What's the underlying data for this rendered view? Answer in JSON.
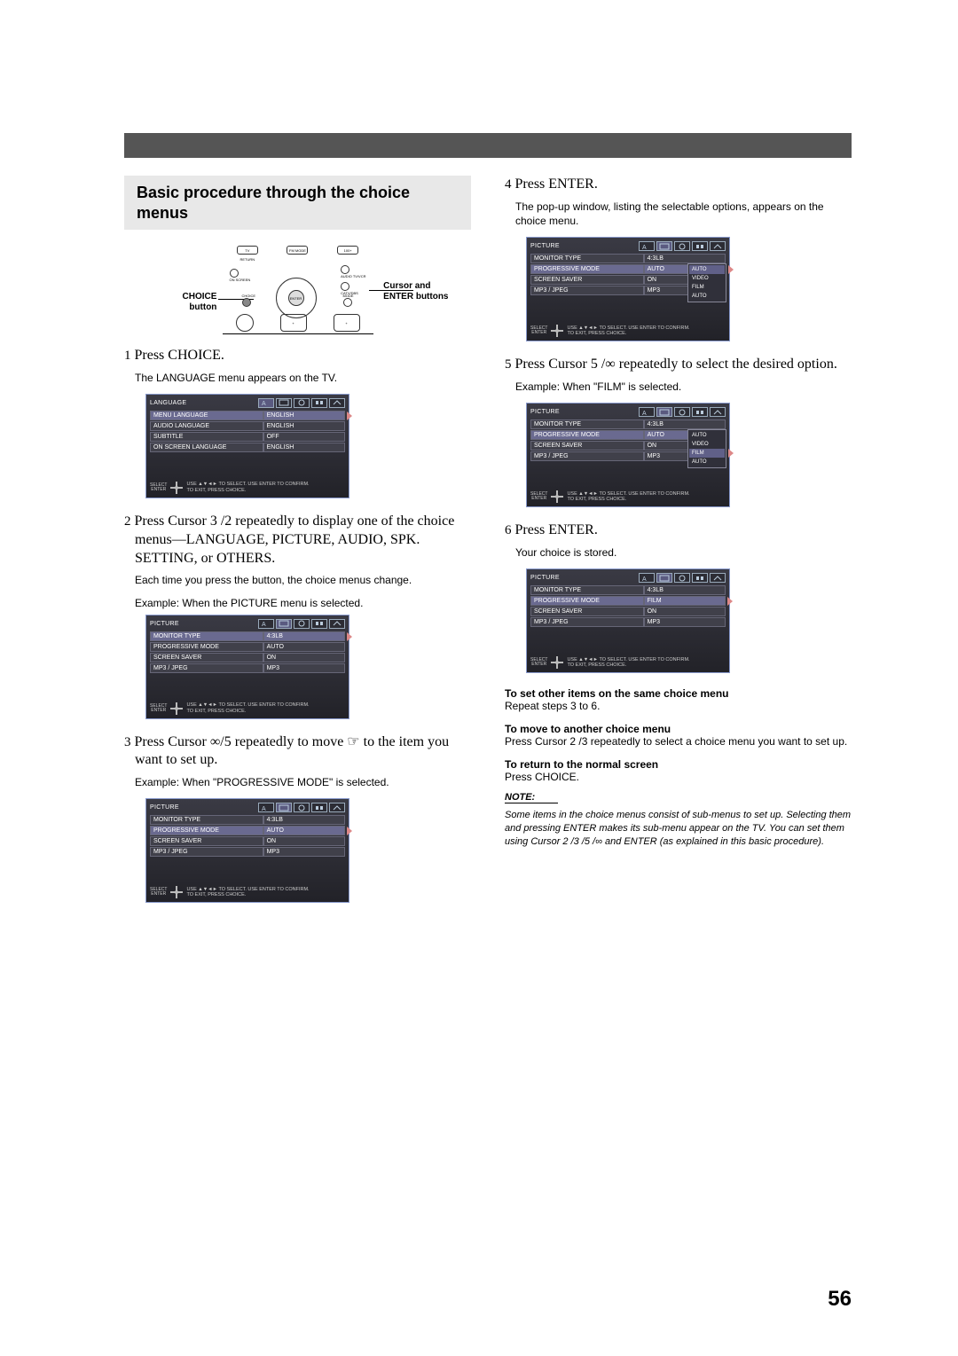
{
  "page_number": "56",
  "title": "Basic procedure through the choice menus",
  "remote": {
    "choice_label": "CHOICE\nbutton",
    "cursor_label": "Cursor and\nENTER buttons",
    "top_btns": [
      "TV RETURN",
      "FM MODE",
      "100+"
    ],
    "side_btns_l": [
      "ON SCREEN"
    ],
    "side_btns_r": [
      "AUDIO TV/VCR",
      "CATV/DBS"
    ],
    "bottom_l": "CHOICE",
    "bottom_r": "MODE",
    "enter": "ENTER"
  },
  "left": {
    "step1": {
      "num": "1",
      "h": "Press CHOICE.",
      "b": "The LANGUAGE menu appears on the TV."
    },
    "step2": {
      "num": "2",
      "h": "Press Cursor 3 /2  repeatedly to display one of the choice menus—LANGUAGE, PICTURE, AUDIO, SPK. SETTING, or OTHERS.",
      "b1": "Each time you press the button, the choice menus change.",
      "b2": "Example: When the PICTURE menu is selected."
    },
    "step3": {
      "num": "3",
      "h": "Press Cursor ∞/5  repeatedly to move  ☞  to the item you want to set up.",
      "b": "Example: When \"PROGRESSIVE MODE\" is selected."
    }
  },
  "right": {
    "step4": {
      "num": "4",
      "h": "Press ENTER.",
      "b": "The pop-up window, listing the selectable options, appears on the choice menu."
    },
    "step5": {
      "num": "5",
      "h": "Press Cursor 5 /∞ repeatedly to select the desired option.",
      "b": "Example: When \"FILM\" is selected."
    },
    "step6": {
      "num": "6",
      "h": "Press ENTER.",
      "b": "Your choice is stored."
    },
    "tail": {
      "t1": "To set other items on the same choice menu",
      "t1b": "Repeat steps 3 to 6.",
      "t2": "To move to another choice menu",
      "t2b": "Press Cursor 2 /3  repeatedly to select a choice menu you want to set up.",
      "t3": "To return to the normal screen",
      "t3b": "Press CHOICE.",
      "note_label": "NOTE:",
      "note": "Some items in the choice menus consist of sub-menus to set up. Selecting them and pressing ENTER makes its sub-menu appear on the TV. You can set them using Cursor 2 /3 /5 /∞ and ENTER (as explained in this basic procedure)."
    }
  },
  "osd_common": {
    "footer_select": "SELECT",
    "footer_enter": "ENTER",
    "footer_text": "USE ▲▼◄► TO SELECT. USE ENTER TO CONFIRM.\nTO EXIT, PRESS CHOICE."
  },
  "osd_language": {
    "title": "LANGUAGE",
    "rows": [
      {
        "l": "MENU LANGUAGE",
        "r": "ENGLISH",
        "sel": true
      },
      {
        "l": "AUDIO LANGUAGE",
        "r": "ENGLISH"
      },
      {
        "l": "SUBTITLE",
        "r": "OFF"
      },
      {
        "l": "ON SCREEN LANGUAGE",
        "r": "ENGLISH"
      }
    ],
    "active_tab": 0
  },
  "osd_picture_a": {
    "title": "PICTURE",
    "rows": [
      {
        "l": "MONITOR TYPE",
        "r": "4:3LB",
        "sel": true
      },
      {
        "l": "PROGRESSIVE MODE",
        "r": "AUTO"
      },
      {
        "l": "SCREEN SAVER",
        "r": "ON"
      },
      {
        "l": "MP3 / JPEG",
        "r": "MP3"
      }
    ],
    "active_tab": 1
  },
  "osd_picture_b": {
    "title": "PICTURE",
    "rows": [
      {
        "l": "MONITOR TYPE",
        "r": "4:3LB"
      },
      {
        "l": "PROGRESSIVE MODE",
        "r": "AUTO",
        "sel": true
      },
      {
        "l": "SCREEN SAVER",
        "r": "ON"
      },
      {
        "l": "MP3 / JPEG",
        "r": "MP3"
      }
    ],
    "active_tab": 1
  },
  "osd_picture_popup_auto": {
    "title": "PICTURE",
    "rows": [
      {
        "l": "MONITOR TYPE",
        "r": "4:3LB"
      },
      {
        "l": "PROGRESSIVE MODE",
        "r": "AUTO",
        "sel": true,
        "popup": true
      },
      {
        "l": "SCREEN SAVER",
        "r": "ON"
      },
      {
        "l": "MP3 / JPEG",
        "r": "MP3"
      }
    ],
    "options": [
      "AUTO",
      "VIDEO",
      "FILM",
      "AUTO"
    ],
    "opt_sel": 0,
    "active_tab": 1
  },
  "osd_picture_popup_film": {
    "title": "PICTURE",
    "rows": [
      {
        "l": "MONITOR TYPE",
        "r": "4:3LB"
      },
      {
        "l": "PROGRESSIVE MODE",
        "r": "AUTO",
        "sel": true,
        "popup": true
      },
      {
        "l": "SCREEN SAVER",
        "r": "ON"
      },
      {
        "l": "MP3 / JPEG",
        "r": "MP3"
      }
    ],
    "options": [
      "AUTO",
      "VIDEO",
      "FILM",
      "AUTO"
    ],
    "opt_sel": 2,
    "active_tab": 1
  },
  "osd_picture_stored": {
    "title": "PICTURE",
    "rows": [
      {
        "l": "MONITOR TYPE",
        "r": "4:3LB"
      },
      {
        "l": "PROGRESSIVE MODE",
        "r": "FILM",
        "sel": true
      },
      {
        "l": "SCREEN SAVER",
        "r": "ON"
      },
      {
        "l": "MP3 / JPEG",
        "r": "MP3"
      }
    ],
    "active_tab": 1
  }
}
